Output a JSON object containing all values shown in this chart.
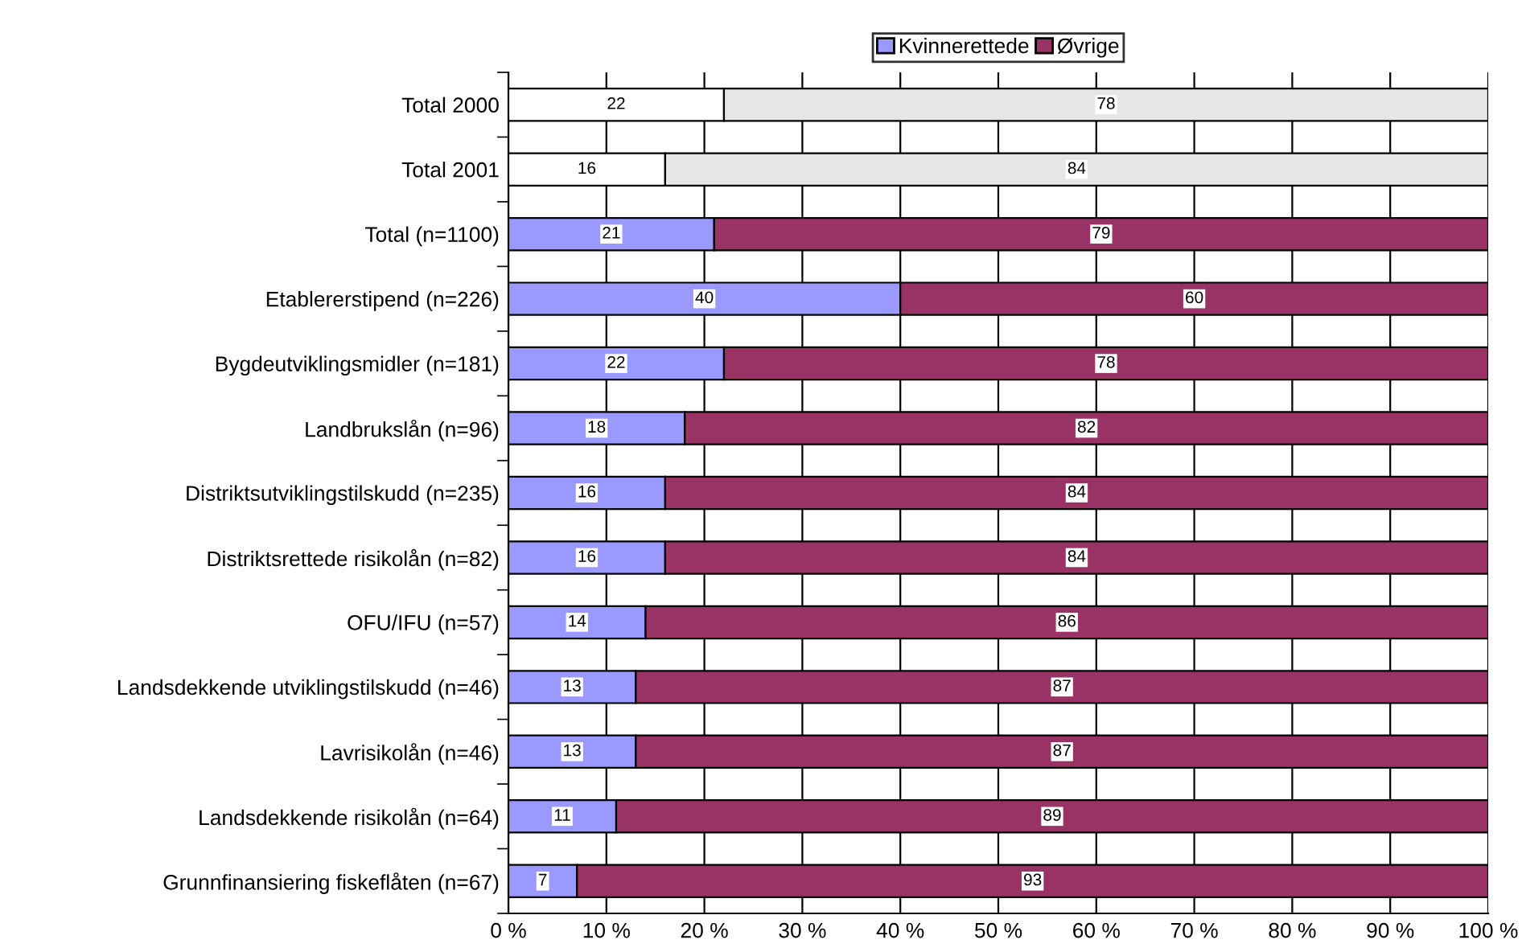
{
  "chart_data": {
    "type": "bar",
    "orientation": "horizontal",
    "stacked": true,
    "categories": [
      "Total 2000",
      "Total 2001",
      "Total (n=1100)",
      "Etablererstipend (n=226)",
      "Bygdeutviklingsmidler (n=181)",
      "Landbrukslån (n=96)",
      "Distriktsutviklingstilskudd (n=235)",
      "Distriktsrettede risikolån (n=82)",
      "OFU/IFU (n=57)",
      "Landsdekkende utviklingstilskudd (n=46)",
      "Lavrisikolån (n=46)",
      "Landsdekkende risikolån (n=64)",
      "Grunnfinansiering fiskeflåten (n=67)"
    ],
    "series": [
      {
        "name": "Kvinnerettede",
        "color": "#9999ff",
        "colors": [
          "#ffffff",
          "#ffffff",
          "#9999ff",
          "#9999ff",
          "#9999ff",
          "#9999ff",
          "#9999ff",
          "#9999ff",
          "#9999ff",
          "#9999ff",
          "#9999ff",
          "#9999ff",
          "#9999ff"
        ],
        "values": [
          22,
          16,
          21,
          40,
          22,
          18,
          16,
          16,
          14,
          13,
          13,
          11,
          7
        ]
      },
      {
        "name": "Øvrige",
        "color": "#993366",
        "colors": [
          "#e6e6e6",
          "#e6e6e6",
          "#993366",
          "#993366",
          "#993366",
          "#993366",
          "#993366",
          "#993366",
          "#993366",
          "#993366",
          "#993366",
          "#993366",
          "#993366"
        ],
        "values": [
          78,
          84,
          79,
          60,
          78,
          82,
          84,
          84,
          86,
          87,
          87,
          89,
          93
        ]
      }
    ],
    "xlim": [
      0,
      100
    ],
    "xticks": [
      {
        "value": 0,
        "label": "0 %"
      },
      {
        "value": 10,
        "label": "10 %"
      },
      {
        "value": 20,
        "label": "20 %"
      },
      {
        "value": 30,
        "label": "30 %"
      },
      {
        "value": 40,
        "label": "40 %"
      },
      {
        "value": 50,
        "label": "50 %"
      },
      {
        "value": 60,
        "label": "60 %"
      },
      {
        "value": 70,
        "label": "70 %"
      },
      {
        "value": 80,
        "label": "80 %"
      },
      {
        "value": 90,
        "label": "90 %"
      },
      {
        "value": 100,
        "label": "100 %"
      }
    ],
    "grid": "x",
    "legend": "top",
    "data_labels": true
  }
}
